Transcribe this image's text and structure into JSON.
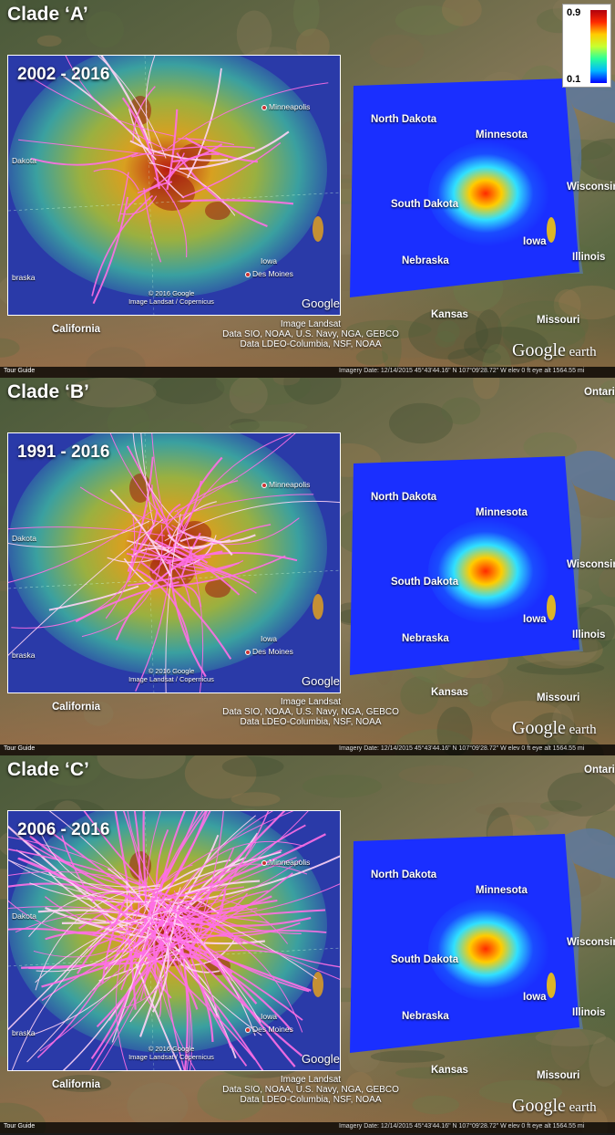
{
  "colorbar": {
    "max_label": "0.9",
    "min_label": "0.1",
    "colors": [
      "#b0000d",
      "#ff2a00",
      "#ffcc00",
      "#c8ff30",
      "#2aff9a",
      "#00b8ff",
      "#0000ff"
    ]
  },
  "panels": [
    {
      "title": "Clade ‘A’",
      "date_range": "2002 - 2016",
      "trajectory_density": "low",
      "show_colorbar": true
    },
    {
      "title": "Clade ‘B’",
      "date_range": "1991 - 2016",
      "trajectory_density": "medium",
      "show_colorbar": false
    },
    {
      "title": "Clade ‘C’",
      "date_range": "2006 - 2016",
      "trajectory_density": "high",
      "show_colorbar": false
    }
  ],
  "labels": {
    "north_dakota": "North Dakota",
    "minnesota": "Minnesota",
    "south_dakota": "South Dakota",
    "wisconsin": "Wisconsin",
    "iowa": "Iowa",
    "nebraska": "Nebraska",
    "illinois": "Illinois",
    "kansas": "Kansas",
    "missouri": "Missouri",
    "california": "California",
    "ontario": "Ontari",
    "inset_dakota": "Dakota",
    "inset_nebraska": "braska",
    "inset_iowa": "Iowa",
    "minneapolis": "Minneapolis",
    "des_moines": "Des Moines"
  },
  "inset_copyright": [
    "© 2016 Google",
    "Image Landsat / Copernicus"
  ],
  "inset_google": "Google",
  "credits": [
    "Image Landsat",
    "Data SIO, NOAA, U.S. Navy, NGA, GEBCO",
    "Data LDEO-Columbia, NSF, NOAA"
  ],
  "google_earth": {
    "google": "Google",
    "earth": "earth"
  },
  "statusbar": {
    "tour_guide": "Tour Guide",
    "text": "Imagery Date: 12/14/2015    45°43'44.16\" N  107°09'28.72\" W  elev   0 ft    eye alt 1564.55 mi"
  },
  "colors": {
    "pink": "#ff6fe6",
    "light_pink": "#ffd4f6",
    "dark_blue": "#1313c8",
    "field_blue": "#1a2fff"
  }
}
